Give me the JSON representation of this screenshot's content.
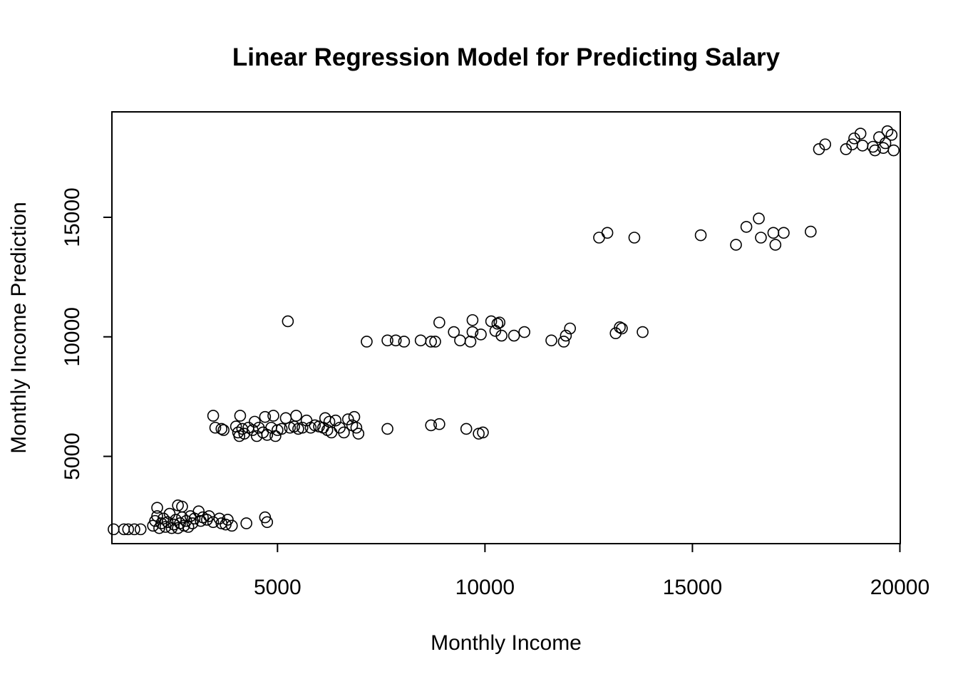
{
  "chart_data": {
    "type": "scatter",
    "title": "Linear Regression Model for Predicting Salary",
    "xlabel": "Monthly Income",
    "ylabel": "Monthly Income Prediction",
    "xlim": [
      1009,
      20009
    ],
    "ylim": [
      1350,
      19410
    ],
    "xticks": [
      5000,
      10000,
      15000,
      20000
    ],
    "xtick_labels": [
      "5000",
      "10000",
      "15000",
      "20000"
    ],
    "yticks": [
      5000,
      10000,
      15000
    ],
    "ytick_labels": [
      "5000",
      "10000",
      "15000"
    ],
    "grid": false,
    "legend": "none",
    "marker": "open-circle",
    "point_color": "#000000",
    "points": [
      [
        1050,
        1950
      ],
      [
        1300,
        1950
      ],
      [
        1400,
        1950
      ],
      [
        1550,
        1950
      ],
      [
        1700,
        1950
      ],
      [
        2000,
        2100
      ],
      [
        2050,
        2300
      ],
      [
        2100,
        2500
      ],
      [
        2100,
        2850
      ],
      [
        2150,
        2000
      ],
      [
        2200,
        2200
      ],
      [
        2250,
        2400
      ],
      [
        2300,
        2050
      ],
      [
        2350,
        2250
      ],
      [
        2400,
        2600
      ],
      [
        2450,
        2000
      ],
      [
        2500,
        2150
      ],
      [
        2550,
        2350
      ],
      [
        2600,
        2000
      ],
      [
        2600,
        2950
      ],
      [
        2650,
        2200
      ],
      [
        2700,
        2450
      ],
      [
        2700,
        2900
      ],
      [
        2750,
        2100
      ],
      [
        2800,
        2300
      ],
      [
        2850,
        2050
      ],
      [
        2900,
        2500
      ],
      [
        2950,
        2200
      ],
      [
        3000,
        2400
      ],
      [
        3100,
        2700
      ],
      [
        3150,
        2300
      ],
      [
        3200,
        2450
      ],
      [
        3300,
        2350
      ],
      [
        3350,
        2500
      ],
      [
        3450,
        2250
      ],
      [
        3600,
        2400
      ],
      [
        3650,
        2200
      ],
      [
        3750,
        2150
      ],
      [
        3800,
        2350
      ],
      [
        3900,
        2100
      ],
      [
        4250,
        2200
      ],
      [
        4700,
        2450
      ],
      [
        4750,
        2250
      ],
      [
        3450,
        6700
      ],
      [
        3500,
        6200
      ],
      [
        3650,
        6150
      ],
      [
        3700,
        6100
      ],
      [
        4000,
        6250
      ],
      [
        4050,
        6000
      ],
      [
        4080,
        5850
      ],
      [
        4100,
        6700
      ],
      [
        4150,
        6150
      ],
      [
        4200,
        5950
      ],
      [
        4300,
        6200
      ],
      [
        4400,
        6100
      ],
      [
        4450,
        6450
      ],
      [
        4500,
        5850
      ],
      [
        4550,
        6200
      ],
      [
        4650,
        6000
      ],
      [
        4700,
        6650
      ],
      [
        4750,
        5900
      ],
      [
        4850,
        6200
      ],
      [
        4900,
        6700
      ],
      [
        4950,
        5850
      ],
      [
        5000,
        6100
      ],
      [
        5100,
        6150
      ],
      [
        5200,
        6600
      ],
      [
        5300,
        6200
      ],
      [
        5400,
        6250
      ],
      [
        5450,
        6700
      ],
      [
        5500,
        6150
      ],
      [
        5600,
        6200
      ],
      [
        5700,
        6500
      ],
      [
        5800,
        6200
      ],
      [
        5900,
        6300
      ],
      [
        6000,
        6250
      ],
      [
        6100,
        6200
      ],
      [
        6150,
        6600
      ],
      [
        6200,
        6100
      ],
      [
        6250,
        6450
      ],
      [
        6300,
        6000
      ],
      [
        6400,
        6500
      ],
      [
        6500,
        6200
      ],
      [
        6600,
        6000
      ],
      [
        6700,
        6550
      ],
      [
        6800,
        6300
      ],
      [
        6850,
        6650
      ],
      [
        6900,
        6200
      ],
      [
        6950,
        5950
      ],
      [
        7650,
        6150
      ],
      [
        8700,
        6300
      ],
      [
        8900,
        6350
      ],
      [
        9550,
        6150
      ],
      [
        9850,
        5950
      ],
      [
        9950,
        6000
      ],
      [
        5250,
        10650
      ],
      [
        7150,
        9800
      ],
      [
        7650,
        9850
      ],
      [
        7850,
        9850
      ],
      [
        8050,
        9800
      ],
      [
        8450,
        9850
      ],
      [
        8700,
        9800
      ],
      [
        8800,
        9800
      ],
      [
        8900,
        10600
      ],
      [
        9250,
        10200
      ],
      [
        9400,
        9850
      ],
      [
        9650,
        9800
      ],
      [
        9700,
        10200
      ],
      [
        9700,
        10700
      ],
      [
        9900,
        10100
      ],
      [
        10150,
        10650
      ],
      [
        10250,
        10250
      ],
      [
        10300,
        10550
      ],
      [
        10350,
        10600
      ],
      [
        10400,
        10050
      ],
      [
        10700,
        10050
      ],
      [
        10950,
        10200
      ],
      [
        11600,
        9850
      ],
      [
        11900,
        9800
      ],
      [
        11950,
        10050
      ],
      [
        12050,
        10350
      ],
      [
        13150,
        10150
      ],
      [
        13250,
        10400
      ],
      [
        13300,
        10350
      ],
      [
        13800,
        10200
      ],
      [
        12750,
        14150
      ],
      [
        12950,
        14350
      ],
      [
        13600,
        14150
      ],
      [
        15200,
        14250
      ],
      [
        16050,
        13850
      ],
      [
        16300,
        14600
      ],
      [
        16600,
        14950
      ],
      [
        16650,
        14150
      ],
      [
        16950,
        14350
      ],
      [
        17000,
        13850
      ],
      [
        17200,
        14350
      ],
      [
        17850,
        14400
      ],
      [
        18050,
        17850
      ],
      [
        18200,
        18050
      ],
      [
        18700,
        17850
      ],
      [
        18850,
        18050
      ],
      [
        18900,
        18300
      ],
      [
        19050,
        18500
      ],
      [
        19100,
        18000
      ],
      [
        19350,
        17950
      ],
      [
        19400,
        17800
      ],
      [
        19500,
        18350
      ],
      [
        19600,
        17900
      ],
      [
        19650,
        18100
      ],
      [
        19700,
        18600
      ],
      [
        19800,
        18450
      ],
      [
        19850,
        17800
      ]
    ]
  }
}
